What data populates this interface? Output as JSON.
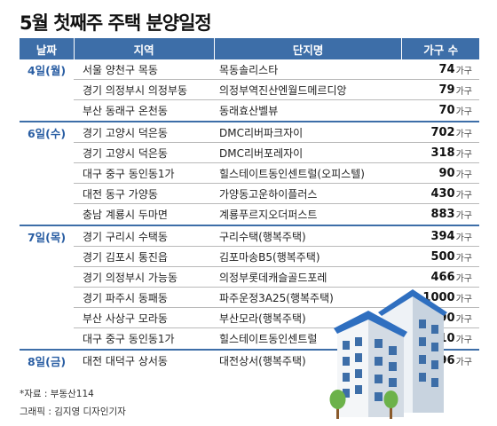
{
  "title": "5월 첫째주 주택 분양일정",
  "columns": [
    "날짜",
    "지역",
    "단지명",
    "가구 수"
  ],
  "unit": "가구",
  "groups": [
    {
      "date": "4일(월)",
      "rows": [
        {
          "region": "서울 양천구 목동",
          "complex": "목동솔리스타",
          "units": "74"
        },
        {
          "region": "경기 의정부시 의정부동",
          "complex": "의정부역진산엔월드메르디앙",
          "units": "79"
        },
        {
          "region": "부산 동래구 온천동",
          "complex": "동래효산벨뷰",
          "units": "70"
        }
      ]
    },
    {
      "date": "6일(수)",
      "rows": [
        {
          "region": "경기 고양시 덕은동",
          "complex": "DMC리버파크자이",
          "units": "702"
        },
        {
          "region": "경기 고양시 덕은동",
          "complex": "DMC리버포레자이",
          "units": "318"
        },
        {
          "region": "대구 중구 동인동1가",
          "complex": "힐스테이트동인센트럴(오피스텔)",
          "units": "90"
        },
        {
          "region": "대전 동구 가양동",
          "complex": "가양동고운하이플러스",
          "units": "430"
        },
        {
          "region": "충남 계룡시 두마면",
          "complex": "계룡푸르지오더퍼스트",
          "units": "883"
        }
      ]
    },
    {
      "date": "7일(목)",
      "rows": [
        {
          "region": "경기 구리시 수택동",
          "complex": "구리수택(행복주택)",
          "units": "394"
        },
        {
          "region": "경기 김포시 통진읍",
          "complex": "김포마송B5(행복주택)",
          "units": "500"
        },
        {
          "region": "경기 의정부시 가능동",
          "complex": "의정부롯데캐슬골드포레",
          "units": "466"
        },
        {
          "region": "경기 파주시 동패동",
          "complex": "파주운정3A25(행복주택)",
          "units": "1000"
        },
        {
          "region": "부산 사상구 모라동",
          "complex": "부산모라(행복주택)",
          "units": "390"
        },
        {
          "region": "대구 중구 동인동1가",
          "complex": "힐스테이트동인센트럴",
          "units": "410"
        }
      ]
    },
    {
      "date": "8일(금)",
      "rows": [
        {
          "region": "대전 대덕구 상서동",
          "complex": "대전상서(행복주택)",
          "units": "296"
        }
      ]
    }
  ],
  "source": "*자료 : 부동산114",
  "credit": "그래픽 : 김지영 디자인기자",
  "colors": {
    "header": "#3d6ea8",
    "date_text": "#2a5ea3"
  }
}
